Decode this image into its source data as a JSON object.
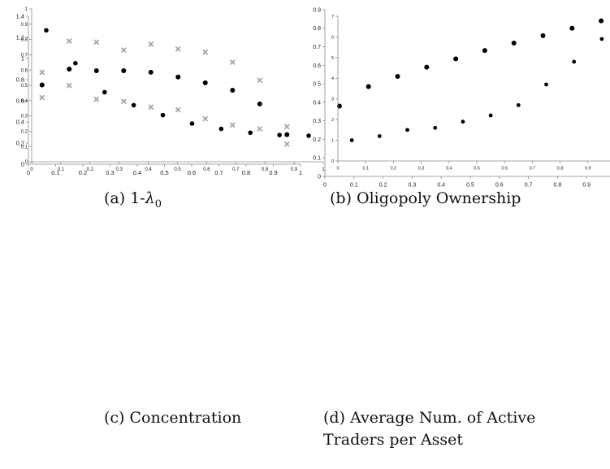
{
  "chart_data": [
    {
      "id": "a",
      "type": "scatter",
      "caption_prefix": "(a) 1-",
      "caption_symbol": "λ",
      "caption_subscript": "0",
      "title": "",
      "xlabel": "",
      "ylabel": "",
      "xlim": [
        0,
        1
      ],
      "ylim": [
        0,
        1.4
      ],
      "xticks": [
        0,
        0.1,
        0.2,
        0.3,
        0.4,
        0.5,
        0.6,
        0.7,
        0.8,
        0.9,
        1
      ],
      "xtick_labels": [
        "0",
        "0.1",
        "0.2",
        "0.3",
        "0.4",
        "0.5",
        "0.6",
        "0.7",
        "0.8",
        "0.9",
        "1"
      ],
      "yticks": [
        0,
        0.2,
        0.4,
        0.6,
        0.8,
        1,
        1.2,
        1.4
      ],
      "ytick_labels": [
        "0",
        "0.2",
        "0.4",
        "0.6",
        "0.8",
        "1",
        "1.2",
        "1.4"
      ],
      "grid": false,
      "legend": "none",
      "series": [
        {
          "marker": "dot",
          "color": "#000000",
          "x": [
            0.05,
            0.15,
            0.25,
            0.35,
            0.45,
            0.55,
            0.65,
            0.75,
            0.85,
            0.95
          ],
          "y": [
            0.75,
            0.9,
            0.885,
            0.885,
            0.87,
            0.825,
            0.77,
            0.7,
            0.57,
            0.28
          ]
        },
        {
          "marker": "cross",
          "color": "#a6a6a6",
          "x": [
            0.05,
            0.15,
            0.25,
            0.35,
            0.45,
            0.55,
            0.65,
            0.75,
            0.85,
            0.95
          ],
          "y": [
            0.87,
            1.165,
            1.155,
            1.08,
            1.135,
            1.09,
            1.06,
            0.965,
            0.795,
            0.355
          ]
        },
        {
          "marker": "cross",
          "color": "#a6a6a6",
          "x": [
            0.05,
            0.15,
            0.25,
            0.35,
            0.45,
            0.55,
            0.65,
            0.75,
            0.85,
            0.95
          ],
          "y": [
            0.63,
            0.745,
            0.615,
            0.595,
            0.54,
            0.515,
            0.43,
            0.37,
            0.335,
            0.19
          ]
        }
      ]
    },
    {
      "id": "b",
      "type": "scatter",
      "caption": "(b) Oligopoly Ownership",
      "title": "",
      "xlabel": "",
      "ylabel": "",
      "xlim": [
        0,
        1
      ],
      "ylim": [
        0,
        0.9
      ],
      "xticks": [
        0,
        0.1,
        0.2,
        0.3,
        0.4,
        0.5,
        0.6,
        0.7,
        0.8,
        0.9,
        1
      ],
      "xtick_labels": [
        "0",
        "0.1",
        "0.2",
        "0.3",
        "0.4",
        "0.5",
        "0.6",
        "0.7",
        "0.8",
        "0.9",
        "1"
      ],
      "yticks": [
        0,
        0.1,
        0.2,
        0.3,
        0.4,
        0.5,
        0.6,
        0.7,
        0.8,
        0.9
      ],
      "ytick_labels": [
        "0",
        "0.1",
        "0.2",
        "0.3",
        "0.4",
        "0.5",
        "0.6",
        "0.7",
        "0.8",
        "0.9"
      ],
      "grid": false,
      "legend": "none",
      "series": [
        {
          "marker": "dot",
          "color": "#000000",
          "x": [
            0.05,
            0.15,
            0.25,
            0.35,
            0.45,
            0.55,
            0.65,
            0.75,
            0.85,
            0.95
          ],
          "y": [
            0.38,
            0.485,
            0.54,
            0.59,
            0.635,
            0.68,
            0.72,
            0.76,
            0.8,
            0.84
          ]
        }
      ]
    },
    {
      "id": "c",
      "type": "scatter",
      "caption": "(c) Concentration",
      "title": "",
      "xlabel": "",
      "ylabel": "",
      "xlim": [
        0,
        1
      ],
      "ylim": [
        0,
        1
      ],
      "xticks": [
        0,
        0.1,
        0.2,
        0.3,
        0.4,
        0.5,
        0.6,
        0.7,
        0.8,
        0.9,
        1
      ],
      "xtick_labels": [
        "0",
        "0.1",
        "0.2",
        "0.3",
        "0.4",
        "0.5",
        "0.6",
        "0.7",
        "0.8",
        "0.9",
        "1"
      ],
      "yticks": [
        0,
        0.1,
        0.2,
        0.3,
        0.4,
        0.5,
        0.6,
        0.7,
        0.8,
        0.9,
        1
      ],
      "ytick_labels": [
        "0",
        "0.1",
        "0.2",
        "0.3",
        "0.4",
        "0.5",
        "0.6",
        "0.7",
        "0.8",
        "0.9",
        "1"
      ],
      "grid": false,
      "legend": "none",
      "series": [
        {
          "marker": "dot",
          "color": "#000000",
          "x": [
            0.05,
            0.15,
            0.25,
            0.35,
            0.45,
            0.55,
            0.65,
            0.75,
            0.85,
            0.95
          ],
          "y": [
            0.86,
            0.645,
            0.455,
            0.37,
            0.305,
            0.25,
            0.215,
            0.19,
            0.175,
            0.17
          ]
        }
      ]
    },
    {
      "id": "d",
      "type": "scatter",
      "caption_lines": [
        "(d) Average Num.  of Active",
        "Traders per Asset"
      ],
      "title": "",
      "xlabel": "",
      "ylabel": "",
      "xlim": [
        0,
        1
      ],
      "ylim": [
        0,
        7
      ],
      "xticks": [
        0,
        0.1,
        0.2,
        0.3,
        0.4,
        0.5,
        0.6,
        0.7,
        0.8,
        0.9,
        1
      ],
      "xtick_labels": [
        "0",
        "0.1",
        "0.2",
        "0.3",
        "0.4",
        "0.5",
        "0.6",
        "0.7",
        "0.8",
        "0.9",
        "1"
      ],
      "yticks": [
        0,
        1,
        2,
        3,
        4,
        5,
        6,
        7
      ],
      "ytick_labels": [
        "0",
        "1",
        "2",
        "3",
        "4",
        "5",
        "6",
        "7"
      ],
      "grid": false,
      "legend": "none",
      "series": [
        {
          "marker": "dot",
          "color": "#000000",
          "x": [
            0.05,
            0.15,
            0.25,
            0.35,
            0.45,
            0.55,
            0.65,
            0.75,
            0.85,
            0.95
          ],
          "y": [
            1.0,
            1.2,
            1.5,
            1.6,
            1.9,
            2.2,
            2.7,
            3.7,
            4.8,
            5.9
          ]
        }
      ]
    }
  ]
}
